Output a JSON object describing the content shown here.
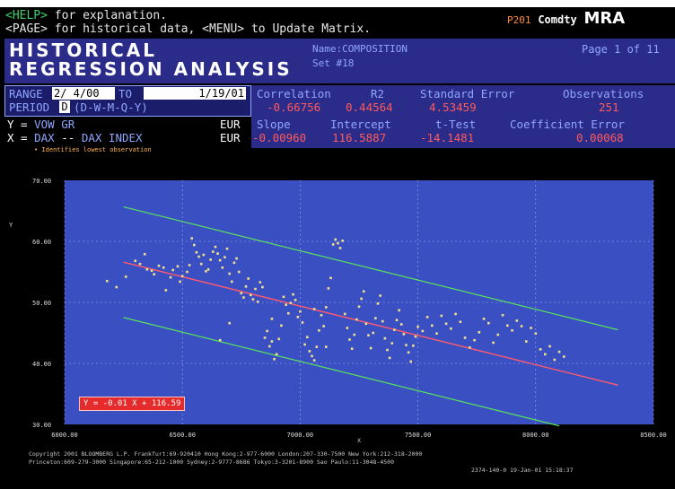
{
  "header": {
    "help_key": "<HELP>",
    "help_text": "for explanation.",
    "page_key": "<PAGE>",
    "page_text": "for historical data,",
    "menu_key": "<MENU>",
    "menu_text": "to Update Matrix.",
    "screen_code": "P201",
    "function_name": "Comdty",
    "function_code": "MRA"
  },
  "title": {
    "line1": "HISTORICAL",
    "line2": "REGRESSION ANALYSIS",
    "name_label": "Name:",
    "name_value": "COMPOSITION",
    "set_text": "Set #18",
    "page_text": "Page 1 of 11"
  },
  "range": {
    "range_label": "RANGE",
    "from": "2/ 4/00",
    "to_label": "TO",
    "to": "1/19/01",
    "period_label": "PERIOD",
    "period_value": "D",
    "period_options": "(D-W-M-Q-Y)"
  },
  "stats": {
    "headers": [
      "Correlation",
      "R2",
      "Standard Error",
      "Observations"
    ],
    "values": [
      "-0.66756",
      "0.44564",
      "4.53459",
      "251"
    ],
    "headers2": [
      "Slope",
      "Intercept",
      "t-Test",
      "Coefficient Error"
    ],
    "values2": [
      "-0.00960",
      "116.5887",
      "-14.1481",
      "0.00068"
    ]
  },
  "variables": {
    "y_prefix": "Y =",
    "y_ticker": "VOW",
    "y_type": "GR",
    "y_currency": "EUR",
    "x_prefix": "X =",
    "x_ticker": "DAX",
    "x_dashes": "--",
    "x_name": "DAX INDEX",
    "x_currency": "EUR",
    "note": "• Identifies lowest observation"
  },
  "chart_data": {
    "type": "scatter",
    "xlabel": "X",
    "ylabel": "Y",
    "xlim": [
      6000,
      8500
    ],
    "ylim": [
      30,
      70
    ],
    "x_ticks": [
      "6000.00",
      "6500.00",
      "7000.00",
      "7500.00",
      "8000.00",
      "8500.00"
    ],
    "y_ticks": [
      "30.00",
      "40.00",
      "50.00",
      "60.00",
      "70.00"
    ],
    "grid": true,
    "equation_label": "Y = -0.01 X + 116.59",
    "slope": -0.0096,
    "intercept": 116.5887,
    "band_offset": 9.07,
    "fit_x_range": [
      6250,
      8350
    ],
    "colors": {
      "plot_bg": "#3a4fc2",
      "points": "#f2e08c",
      "fit_line": "#ff5a6e",
      "band_lines": "#58e35c"
    },
    "points": [
      [
        6180,
        53.5
      ],
      [
        6220,
        52.5
      ],
      [
        6260,
        54.2
      ],
      [
        6300,
        56.8
      ],
      [
        6320,
        56.3
      ],
      [
        6340,
        57.9
      ],
      [
        6350,
        55.4
      ],
      [
        6370,
        55.2
      ],
      [
        6380,
        54.6
      ],
      [
        6400,
        56.0
      ],
      [
        6420,
        55.7
      ],
      [
        6430,
        52.0
      ],
      [
        6450,
        54.1
      ],
      [
        6460,
        55.3
      ],
      [
        6480,
        55.9
      ],
      [
        6490,
        53.4
      ],
      [
        6500,
        54.3
      ],
      [
        6520,
        55.0
      ],
      [
        6530,
        56.1
      ],
      [
        6540,
        60.5
      ],
      [
        6550,
        59.4
      ],
      [
        6560,
        58.2
      ],
      [
        6570,
        57.5
      ],
      [
        6580,
        56.3
      ],
      [
        6590,
        57.8
      ],
      [
        6600,
        55.1
      ],
      [
        6610,
        55.4
      ],
      [
        6620,
        57.0
      ],
      [
        6630,
        58.3
      ],
      [
        6640,
        59.1
      ],
      [
        6650,
        58.0
      ],
      [
        6660,
        56.9
      ],
      [
        6670,
        55.7
      ],
      [
        6680,
        57.4
      ],
      [
        6690,
        58.8
      ],
      [
        6700,
        54.7
      ],
      [
        6710,
        53.4
      ],
      [
        6720,
        56.5
      ],
      [
        6730,
        57.2
      ],
      [
        6740,
        55.0
      ],
      [
        6750,
        51.5
      ],
      [
        6760,
        50.8
      ],
      [
        6770,
        52.6
      ],
      [
        6780,
        53.9
      ],
      [
        6790,
        51.2
      ],
      [
        6800,
        50.5
      ],
      [
        6810,
        52.2
      ],
      [
        6820,
        50.1
      ],
      [
        6830,
        53.3
      ],
      [
        6840,
        52.5
      ],
      [
        6850,
        44.2
      ],
      [
        6860,
        45.3
      ],
      [
        6870,
        42.8
      ],
      [
        6880,
        43.6
      ],
      [
        6890,
        40.7
      ],
      [
        6900,
        41.5
      ],
      [
        6910,
        44.0
      ],
      [
        6920,
        46.2
      ],
      [
        6930,
        50.9
      ],
      [
        6940,
        49.6
      ],
      [
        6950,
        48.2
      ],
      [
        6960,
        49.9
      ],
      [
        6970,
        51.3
      ],
      [
        6980,
        50.4
      ],
      [
        6990,
        47.6
      ],
      [
        7000,
        48.5
      ],
      [
        7010,
        46.7
      ],
      [
        7020,
        43.1
      ],
      [
        7030,
        44.3
      ],
      [
        7040,
        42.0
      ],
      [
        7050,
        41.2
      ],
      [
        7060,
        40.5
      ],
      [
        7070,
        42.7
      ],
      [
        7080,
        45.4
      ],
      [
        7090,
        47.9
      ],
      [
        7100,
        46.1
      ],
      [
        7110,
        49.2
      ],
      [
        7120,
        52.3
      ],
      [
        7130,
        54.0
      ],
      [
        7140,
        59.5
      ],
      [
        7150,
        60.3
      ],
      [
        7160,
        59.7
      ],
      [
        7170,
        58.9
      ],
      [
        7180,
        60.1
      ],
      [
        7190,
        48.1
      ],
      [
        7200,
        45.8
      ],
      [
        7210,
        43.9
      ],
      [
        7220,
        42.4
      ],
      [
        7230,
        44.7
      ],
      [
        7240,
        47.2
      ],
      [
        7250,
        49.3
      ],
      [
        7260,
        50.6
      ],
      [
        7270,
        51.8
      ],
      [
        7280,
        46.5
      ],
      [
        7290,
        44.6
      ],
      [
        7300,
        42.5
      ],
      [
        7310,
        45.0
      ],
      [
        7320,
        47.4
      ],
      [
        7330,
        49.8
      ],
      [
        7340,
        51.1
      ],
      [
        7350,
        46.9
      ],
      [
        7360,
        44.1
      ],
      [
        7370,
        42.2
      ],
      [
        7380,
        40.9
      ],
      [
        7390,
        43.3
      ],
      [
        7400,
        45.5
      ],
      [
        7410,
        47.1
      ],
      [
        7420,
        48.7
      ],
      [
        7430,
        46.4
      ],
      [
        7440,
        44.8
      ],
      [
        7450,
        43.0
      ],
      [
        7460,
        41.8
      ],
      [
        7470,
        40.3
      ],
      [
        7480,
        42.9
      ],
      [
        7490,
        44.4
      ],
      [
        7500,
        46.0
      ],
      [
        7520,
        45.3
      ],
      [
        7540,
        47.6
      ],
      [
        7560,
        46.2
      ],
      [
        7580,
        44.9
      ],
      [
        7600,
        47.8
      ],
      [
        7620,
        46.5
      ],
      [
        7640,
        45.7
      ],
      [
        7660,
        48.1
      ],
      [
        7680,
        46.8
      ],
      [
        7700,
        44.2
      ],
      [
        7720,
        42.6
      ],
      [
        7740,
        43.8
      ],
      [
        7760,
        45.1
      ],
      [
        7780,
        47.3
      ],
      [
        7800,
        46.6
      ],
      [
        7820,
        43.4
      ],
      [
        7840,
        44.7
      ],
      [
        7860,
        47.9
      ],
      [
        7880,
        46.2
      ],
      [
        7900,
        45.4
      ],
      [
        7920,
        47.0
      ],
      [
        7940,
        46.1
      ],
      [
        7960,
        43.6
      ],
      [
        7980,
        45.8
      ],
      [
        8000,
        44.9
      ],
      [
        8020,
        42.3
      ],
      [
        8040,
        41.5
      ],
      [
        8060,
        42.8
      ],
      [
        8080,
        40.6
      ],
      [
        8100,
        41.9
      ],
      [
        8120,
        41.1
      ],
      [
        6660,
        43.8
      ],
      [
        6700,
        46.6
      ],
      [
        6880,
        47.3
      ],
      [
        7060,
        48.9
      ],
      [
        7110,
        42.7
      ]
    ]
  },
  "footer": {
    "line1": "Copyright 2001 BLOOMBERG L.P.  Frankfurt:69-920410  Hong Kong:2-977-6000  London:207-330-7500  New York:212-318-2000",
    "line2": "Princeton:609-279-3000   Singapore:65-212-1000   Sydney:2-9777-8686   Tokyo:3-3201-8900   Sao Paulo:11-3048-4500",
    "line3": "2374-140-0 19-Jan-01 15:18:37"
  }
}
